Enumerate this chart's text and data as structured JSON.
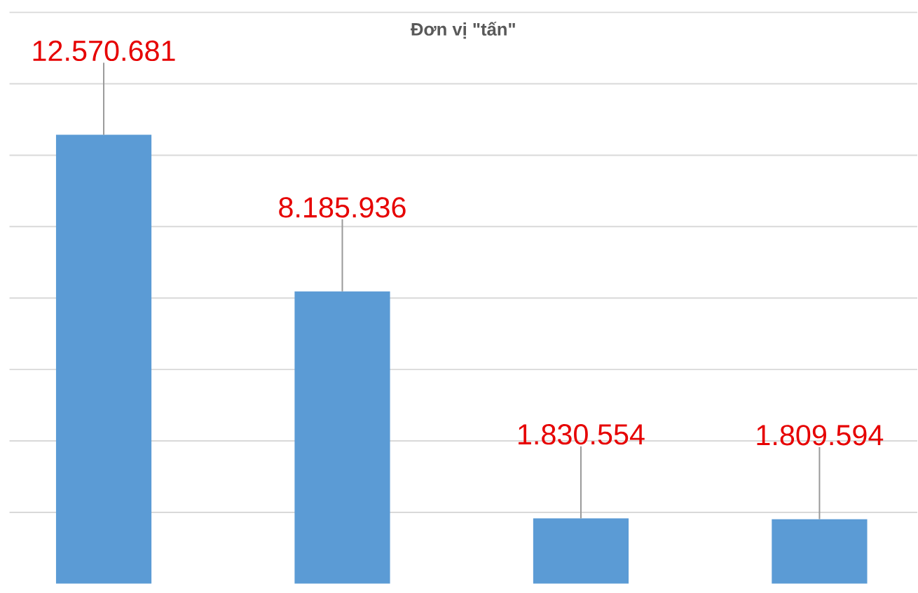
{
  "chart_data": {
    "type": "bar",
    "title": "Đơn vị \"tấn\"",
    "categories": [
      null,
      null,
      null,
      null
    ],
    "values": [
      12570681,
      8185936,
      1830554,
      1809594
    ],
    "value_labels": [
      "12.570.681",
      "8.185.936",
      "1.830.554",
      "1.809.594"
    ],
    "color": "#5b9bd5",
    "yticks": [
      {
        "value": 2000000,
        "label": null
      },
      {
        "value": 4000000,
        "label": null
      },
      {
        "value": 6000000,
        "label": null
      },
      {
        "value": 8000000,
        "label": null
      },
      {
        "value": 10000000,
        "label": null
      },
      {
        "value": 12000000,
        "label": null
      },
      {
        "value": 14000000,
        "label": null
      },
      {
        "value": 16000000,
        "label": null
      }
    ],
    "grid": "y"
  }
}
